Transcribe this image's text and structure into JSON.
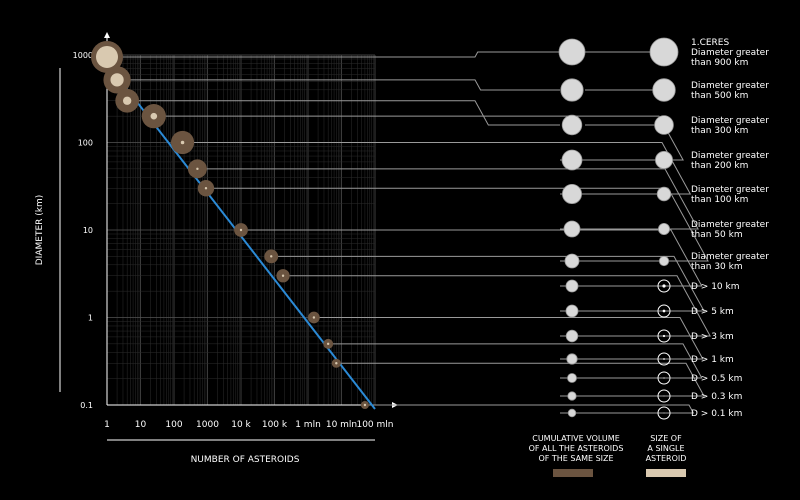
{
  "colors": {
    "background": "#000000",
    "trend_line": "#2b8ad6",
    "cumulative_volume": "#6b5440",
    "single_size": "#d9c9b0"
  },
  "chart_data": {
    "type": "scatter",
    "x_scale": "log",
    "y_scale": "log",
    "xlabel": "NUMBER OF ASTEROIDS",
    "ylabel": "DIAMETER (km)",
    "xlim": [
      1,
      100000000
    ],
    "ylim": [
      0.1,
      1000
    ],
    "x_ticks": [
      {
        "value": 1,
        "label": "1"
      },
      {
        "value": 10,
        "label": "10"
      },
      {
        "value": 100,
        "label": "100"
      },
      {
        "value": 1000,
        "label": "1000"
      },
      {
        "value": 10000,
        "label": "10 k"
      },
      {
        "value": 100000,
        "label": "100 k"
      },
      {
        "value": 1000000,
        "label": "1 mln"
      },
      {
        "value": 10000000,
        "label": "10 mln"
      },
      {
        "value": 100000000,
        "label": "100 mln"
      }
    ],
    "y_ticks": [
      {
        "value": 1000,
        "label": "1000"
      },
      {
        "value": 100,
        "label": "100"
      },
      {
        "value": 10,
        "label": "10"
      },
      {
        "value": 1,
        "label": "1"
      },
      {
        "value": 0.1,
        "label": "0.1"
      }
    ],
    "grid": true,
    "trend_line": {
      "x": [
        1.8,
        100000000
      ],
      "y": [
        600,
        0.09
      ]
    },
    "points": [
      {
        "x": 1,
        "y": 950,
        "volume_share": 1.0,
        "size_share": 1.0,
        "label": "1.CERES\nDiameter greater\nthan 900 km"
      },
      {
        "x": 2,
        "y": 520,
        "volume_share": 0.82,
        "size_share": 0.6,
        "label": "Diameter greater\nthan 500 km"
      },
      {
        "x": 4,
        "y": 300,
        "volume_share": 0.68,
        "size_share": 0.38,
        "label": "Diameter greater\nthan 300 km"
      },
      {
        "x": 25,
        "y": 200,
        "volume_share": 0.7,
        "size_share": 0.3,
        "label": "Diameter greater\nthan 200 km"
      },
      {
        "x": 180,
        "y": 100,
        "volume_share": 0.66,
        "size_share": 0.16,
        "label": "Diameter greater\nthan 100 km"
      },
      {
        "x": 500,
        "y": 50,
        "volume_share": 0.5,
        "size_share": 0.09,
        "label": "Diameter greater\nthan 50 km"
      },
      {
        "x": 900,
        "y": 30,
        "volume_share": 0.4,
        "size_share": 0.05,
        "label": "Diameter greater\nthan 30 km"
      },
      {
        "x": 10000,
        "y": 10,
        "volume_share": 0.3,
        "size_share": 0.025,
        "label": "D > 10 km"
      },
      {
        "x": 80000,
        "y": 5,
        "volume_share": 0.3,
        "size_share": 0.012,
        "label": "D > 5 km"
      },
      {
        "x": 180000,
        "y": 3,
        "volume_share": 0.28,
        "size_share": 0.006,
        "label": "D > 3 km"
      },
      {
        "x": 1500000,
        "y": 1,
        "volume_share": 0.22,
        "size_share": 0.002,
        "label": "D > 1 km"
      },
      {
        "x": 4000000,
        "y": 0.5,
        "volume_share": 0.15,
        "size_share": 0.001,
        "label": "D > 0.5 km"
      },
      {
        "x": 7000000,
        "y": 0.3,
        "volume_share": 0.12,
        "size_share": 0.0005,
        "label": "D > 0.3 km"
      },
      {
        "x": 50000000,
        "y": 0.1,
        "volume_share": 0.08,
        "size_share": 0.0002,
        "label": "D > 0.1 km"
      }
    ],
    "legend": [
      {
        "key": "cumulative",
        "label": "CUMULATIVE VOLUME\nOF ALL THE ASTEROIDS\nOF THE SAME SIZE"
      },
      {
        "key": "single",
        "label": "SIZE OF\nA SINGLE\nASTEROID"
      }
    ]
  }
}
